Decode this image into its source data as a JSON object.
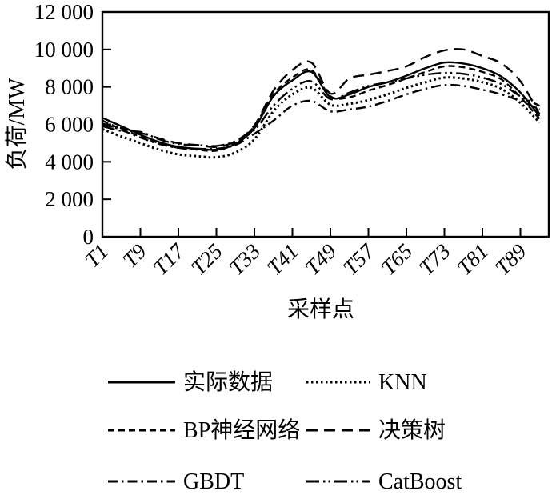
{
  "chart_data": {
    "type": "line",
    "title": "",
    "xlabel": "采样点",
    "ylabel": "负荷/MW",
    "ylim": [
      0,
      12000
    ],
    "grid": false,
    "line_color": "#000000",
    "legend_position": "below-chart-two-columns",
    "y_ticks": {
      "values": [
        0,
        2000,
        4000,
        6000,
        8000,
        10000,
        12000
      ],
      "labels": [
        "0",
        "2 000",
        "4 000",
        "6 000",
        "8 000",
        "10 000",
        "12 000"
      ]
    },
    "x_ticks": {
      "values": [
        1,
        9,
        17,
        25,
        33,
        41,
        49,
        57,
        65,
        73,
        81,
        89
      ],
      "labels": [
        "T1",
        "T9",
        "T17",
        "T25",
        "T33",
        "T41",
        "T49",
        "T57",
        "T65",
        "T73",
        "T81",
        "T89"
      ]
    },
    "x": [
      1,
      5,
      9,
      13,
      17,
      21,
      25,
      29,
      33,
      37,
      41,
      45,
      49,
      53,
      57,
      61,
      65,
      69,
      73,
      77,
      81,
      85,
      89,
      93
    ],
    "series": [
      {
        "name": "实际数据",
        "style": "solid",
        "values": [
          6350,
          5900,
          5450,
          5050,
          4800,
          4700,
          4650,
          4950,
          5800,
          7500,
          8350,
          8800,
          7450,
          7600,
          8000,
          8250,
          8600,
          9000,
          9300,
          9250,
          9000,
          8550,
          7700,
          6450
        ]
      },
      {
        "name": "KNN",
        "style": "dotted",
        "values": [
          5750,
          5350,
          5000,
          4650,
          4400,
          4300,
          4250,
          4500,
          5200,
          6700,
          7600,
          7950,
          7050,
          7100,
          7300,
          7600,
          7950,
          8250,
          8500,
          8450,
          8250,
          7900,
          7150,
          6100
        ]
      },
      {
        "name": "BP神经网络",
        "style": "dash-fine",
        "values": [
          6200,
          5750,
          5350,
          5000,
          4750,
          4650,
          4600,
          5000,
          5900,
          7600,
          8500,
          8900,
          7500,
          7450,
          7800,
          8100,
          8450,
          8800,
          9100,
          9050,
          8800,
          8400,
          7450,
          6300
        ]
      },
      {
        "name": "决策树",
        "style": "dash",
        "values": [
          5950,
          5800,
          5550,
          5250,
          5000,
          4900,
          4800,
          5100,
          5950,
          7800,
          8900,
          9300,
          7650,
          8450,
          8650,
          8850,
          9100,
          9600,
          9950,
          10000,
          9650,
          9250,
          8300,
          6550
        ]
      },
      {
        "name": "GBDT",
        "style": "dash-dot",
        "values": [
          6050,
          5700,
          5300,
          4950,
          4750,
          4700,
          4700,
          4900,
          5500,
          6200,
          7000,
          7250,
          6700,
          6800,
          6950,
          7250,
          7600,
          7900,
          8100,
          8050,
          7850,
          7600,
          7250,
          6800
        ]
      },
      {
        "name": "CatBoost",
        "style": "dash-dot-dot",
        "values": [
          5900,
          5650,
          5600,
          5200,
          4950,
          4900,
          4850,
          5100,
          5700,
          7000,
          7900,
          8300,
          7350,
          7700,
          8050,
          8250,
          8450,
          8650,
          8750,
          8700,
          8500,
          8150,
          7500,
          7000
        ]
      }
    ]
  }
}
